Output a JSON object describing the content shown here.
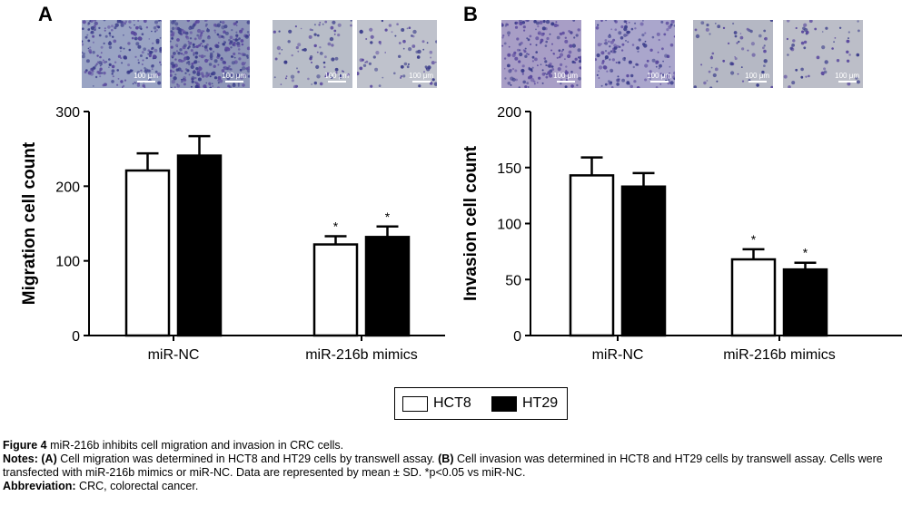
{
  "panels": [
    {
      "letter": "A"
    },
    {
      "letter": "B"
    }
  ],
  "micrographs": {
    "scale_label": "100 μm",
    "items": [
      {
        "panel": "A",
        "tint": "#9aa4c4",
        "density": 220
      },
      {
        "panel": "A",
        "tint": "#8e96b8",
        "density": 320
      },
      {
        "panel": "A",
        "tint": "#b8bdc8",
        "density": 80
      },
      {
        "panel": "A",
        "tint": "#bfc2cc",
        "density": 70
      },
      {
        "panel": "B",
        "tint": "#a89ec6",
        "density": 180
      },
      {
        "panel": "B",
        "tint": "#aaa6cc",
        "density": 160
      },
      {
        "panel": "B",
        "tint": "#b5b8c4",
        "density": 60
      },
      {
        "panel": "B",
        "tint": "#bcbec8",
        "density": 55
      }
    ]
  },
  "chart_data": [
    {
      "type": "bar",
      "panel": "A",
      "categories": [
        "miR-NC",
        "miR-216b mimics"
      ],
      "ylabel": "Migration cell count",
      "ylim": [
        0,
        300
      ],
      "yticks": [
        "0",
        "100",
        "200",
        "300"
      ],
      "series": [
        {
          "name": "HCT8",
          "values": [
            221,
            122
          ],
          "errors": [
            23,
            11
          ],
          "color": "#ffffff"
        },
        {
          "name": "HT29",
          "values": [
            241,
            132
          ],
          "errors": [
            26,
            14
          ],
          "color": "#000000"
        }
      ],
      "significance": [
        [
          "",
          "*"
        ],
        [
          "",
          "*"
        ]
      ]
    },
    {
      "type": "bar",
      "panel": "B",
      "categories": [
        "miR-NC",
        "miR-216b mimics"
      ],
      "ylabel": "Invasion cell count",
      "ylim": [
        0,
        200
      ],
      "yticks": [
        "0",
        "50",
        "100",
        "150",
        "200"
      ],
      "series": [
        {
          "name": "HCT8",
          "values": [
            143,
            68
          ],
          "errors": [
            16,
            9
          ],
          "color": "#ffffff"
        },
        {
          "name": "HT29",
          "values": [
            133,
            59
          ],
          "errors": [
            12,
            6
          ],
          "color": "#000000"
        }
      ],
      "significance": [
        [
          "",
          "*"
        ],
        [
          "",
          "*"
        ]
      ]
    }
  ],
  "legend": {
    "items": [
      {
        "label": "HCT8",
        "color": "#ffffff"
      },
      {
        "label": "HT29",
        "color": "#000000"
      }
    ]
  },
  "caption": {
    "figure_label": "Figure 4",
    "figure_text": " miR-216b inhibits cell migration and invasion in CRC cells.",
    "notes_label": "Notes:",
    "notes_a_label": "(A)",
    "notes_a_text": " Cell migration was determined in HCT8 and HT29 cells by transwell assay. ",
    "notes_b_label": "(B)",
    "notes_b_text": " Cell invasion was determined in HCT8 and HT29 cells by transwell assay. Cells were transfected with miR-216b mimics or miR-NC. Data are represented by mean ± SD. *p<0.05 vs miR-NC.",
    "abbrev_label": "Abbreviation:",
    "abbrev_text": " CRC, colorectal cancer."
  }
}
